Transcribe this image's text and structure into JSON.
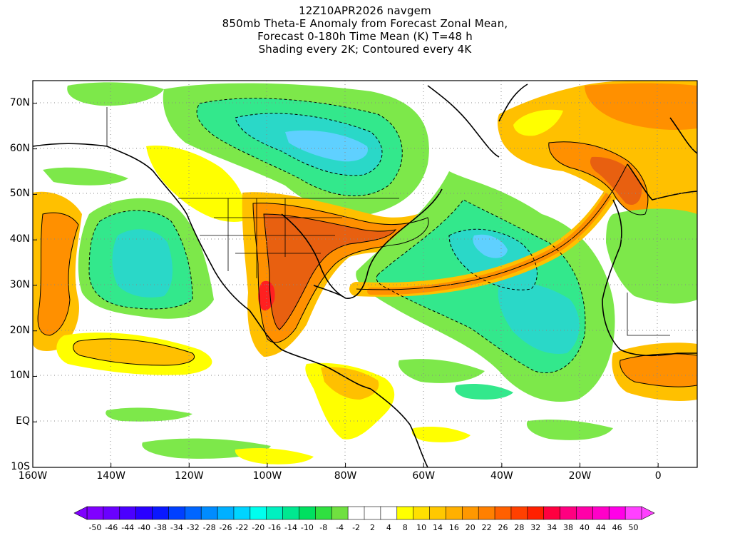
{
  "title": {
    "lines": [
      "12Z10APR2026 navgem",
      "850mb Theta-E Anomaly from Forecast Zonal Mean,",
      "Forecast 0-180h Time Mean (K) T=48 h",
      "Shading every 2K; Contoured every 4K"
    ]
  },
  "axes": {
    "lat_labels": [
      "70N",
      "60N",
      "50N",
      "40N",
      "30N",
      "20N",
      "10N",
      "EQ",
      "10S"
    ],
    "lat_values": [
      70,
      60,
      50,
      40,
      30,
      20,
      10,
      0,
      -10
    ],
    "lon_labels": [
      "160W",
      "140W",
      "120W",
      "100W",
      "80W",
      "60W",
      "40W",
      "20W",
      "0"
    ],
    "lon_values": [
      -160,
      -140,
      -120,
      -100,
      -80,
      -60,
      -40,
      -20,
      0
    ],
    "lon_range": [
      -160,
      10
    ],
    "lat_range": [
      -10,
      75
    ]
  },
  "colorbar": {
    "labels": [
      "-50",
      "-46",
      "-44",
      "-40",
      "-38",
      "-34",
      "-32",
      "-28",
      "-26",
      "-22",
      "-20",
      "-16",
      "-14",
      "-10",
      "-8",
      "-4",
      "-2",
      "2",
      "4",
      "8",
      "10",
      "14",
      "16",
      "20",
      "22",
      "26",
      "28",
      "32",
      "34",
      "38",
      "40",
      "44",
      "46",
      "50"
    ],
    "colors": [
      "#8000ff",
      "#6a00ff",
      "#4b00ff",
      "#2a00ff",
      "#0a18ff",
      "#0040ff",
      "#0066ff",
      "#008cff",
      "#00b0ff",
      "#00d4ff",
      "#00ffee",
      "#00f0c0",
      "#00e890",
      "#00e060",
      "#30e040",
      "#70e040",
      "#ffffff",
      "#ffffff",
      "#ffffff",
      "#ffff00",
      "#ffe000",
      "#ffc800",
      "#ffb000",
      "#ff9800",
      "#ff8000",
      "#ff6000",
      "#ff4000",
      "#ff2000",
      "#ff0040",
      "#ff0080",
      "#ff00a8",
      "#ff00c8",
      "#ff00e8",
      "#ff40ff"
    ]
  },
  "colors": {
    "cool_light": "#7de84a",
    "cool_mid": "#33e88c",
    "cool_dark": "#2ad8c8",
    "cool_core": "#5fd0ff",
    "warm_light": "#ffff00",
    "warm_mid": "#ffc000",
    "warm_dark": "#ff9000",
    "warm_core": "#e86010",
    "hot": "#ff2020"
  }
}
